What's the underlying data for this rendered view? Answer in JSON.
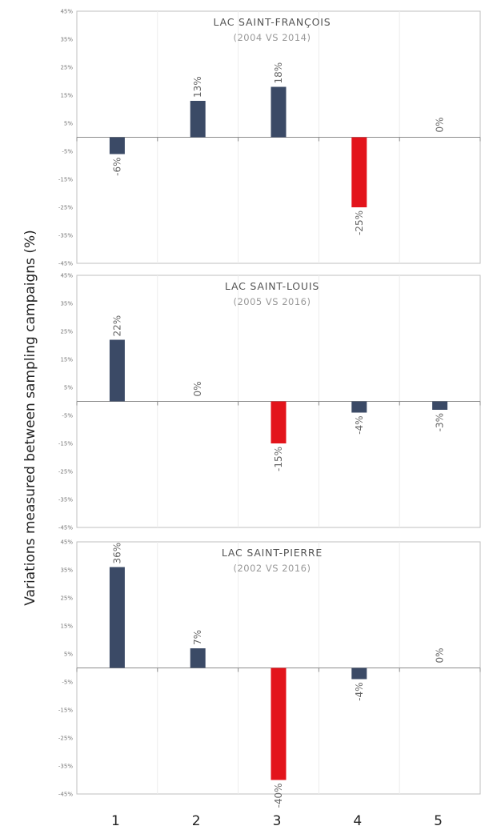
{
  "chart_data": {
    "type": "bar",
    "ylabel": "Variations measured between sampling campaigns (%)",
    "categories": [
      "1",
      "2",
      "3",
      "4",
      "5"
    ],
    "yticks": [
      "45%",
      "35%",
      "25%",
      "15%",
      "5%",
      "-5%",
      "-15%",
      "-25%",
      "-35%",
      "-45%"
    ],
    "ylim": [
      -45,
      45
    ],
    "grid": true,
    "colors": {
      "default": "#3b4a66",
      "highlight": "#e3141b"
    },
    "panels": [
      {
        "title": "LAC SAINT-FRANÇOIS",
        "subtitle": "(2004 VS 2014)",
        "values": [
          -6,
          13,
          18,
          -25,
          0
        ],
        "labels": [
          "-6%",
          "13%",
          "18%",
          "-25%",
          "0%"
        ],
        "highlight": [
          false,
          false,
          false,
          true,
          false
        ]
      },
      {
        "title": "LAC SAINT-LOUIS",
        "subtitle": "(2005 VS 2016)",
        "values": [
          22,
          0,
          -15,
          -4,
          -3
        ],
        "labels": [
          "22%",
          "0%",
          "-15%",
          "-4%",
          "-3%"
        ],
        "highlight": [
          false,
          false,
          true,
          false,
          false
        ]
      },
      {
        "title": "LAC SAINT-PIERRE",
        "subtitle": "(2002 VS 2016)",
        "values": [
          36,
          7,
          -40,
          -4,
          0
        ],
        "labels": [
          "36%",
          "7%",
          "-40%",
          "-4%",
          "0%"
        ],
        "highlight": [
          false,
          false,
          true,
          false,
          false
        ]
      }
    ]
  }
}
